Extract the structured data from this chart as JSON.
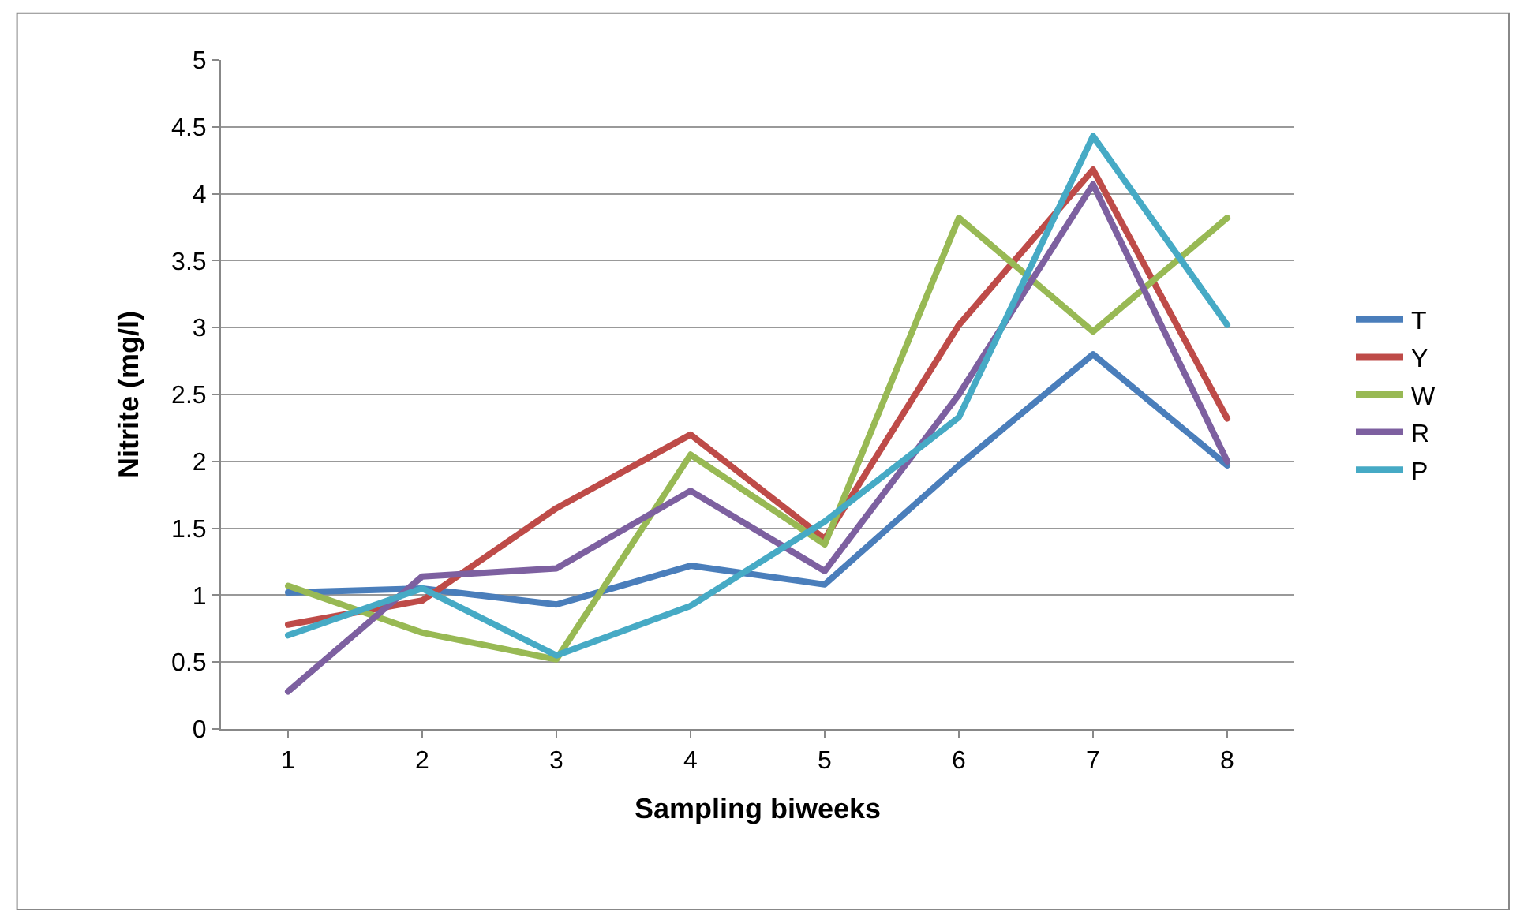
{
  "chart_data": {
    "type": "line",
    "xlabel": "Sampling biweeks",
    "ylabel": "Nitrite (mg/l)",
    "categories": [
      "1",
      "2",
      "3",
      "4",
      "5",
      "6",
      "7",
      "8"
    ],
    "series": [
      {
        "name": "T",
        "color": "#4a7ebb",
        "values": [
          1.02,
          1.05,
          0.93,
          1.22,
          1.08,
          1.97,
          2.8,
          1.97
        ]
      },
      {
        "name": "Y",
        "color": "#be4b48",
        "values": [
          0.78,
          0.96,
          1.65,
          2.2,
          1.42,
          3.02,
          4.18,
          2.32
        ]
      },
      {
        "name": "W",
        "color": "#98b954",
        "values": [
          1.07,
          0.72,
          0.52,
          2.05,
          1.38,
          3.82,
          2.97,
          3.82
        ]
      },
      {
        "name": "R",
        "color": "#7d60a0",
        "values": [
          0.28,
          1.14,
          1.2,
          1.78,
          1.18,
          2.5,
          4.07,
          2.0
        ]
      },
      {
        "name": "P",
        "color": "#46aac5",
        "values": [
          0.7,
          1.05,
          0.55,
          0.92,
          1.55,
          2.33,
          4.43,
          3.02
        ]
      }
    ],
    "ylim": [
      0,
      5
    ],
    "yticks": [
      0,
      0.5,
      1,
      1.5,
      2,
      2.5,
      3,
      3.5,
      4,
      4.5,
      5
    ],
    "grid": "y",
    "legend": "right",
    "marker": "none",
    "line_style": "solid"
  }
}
